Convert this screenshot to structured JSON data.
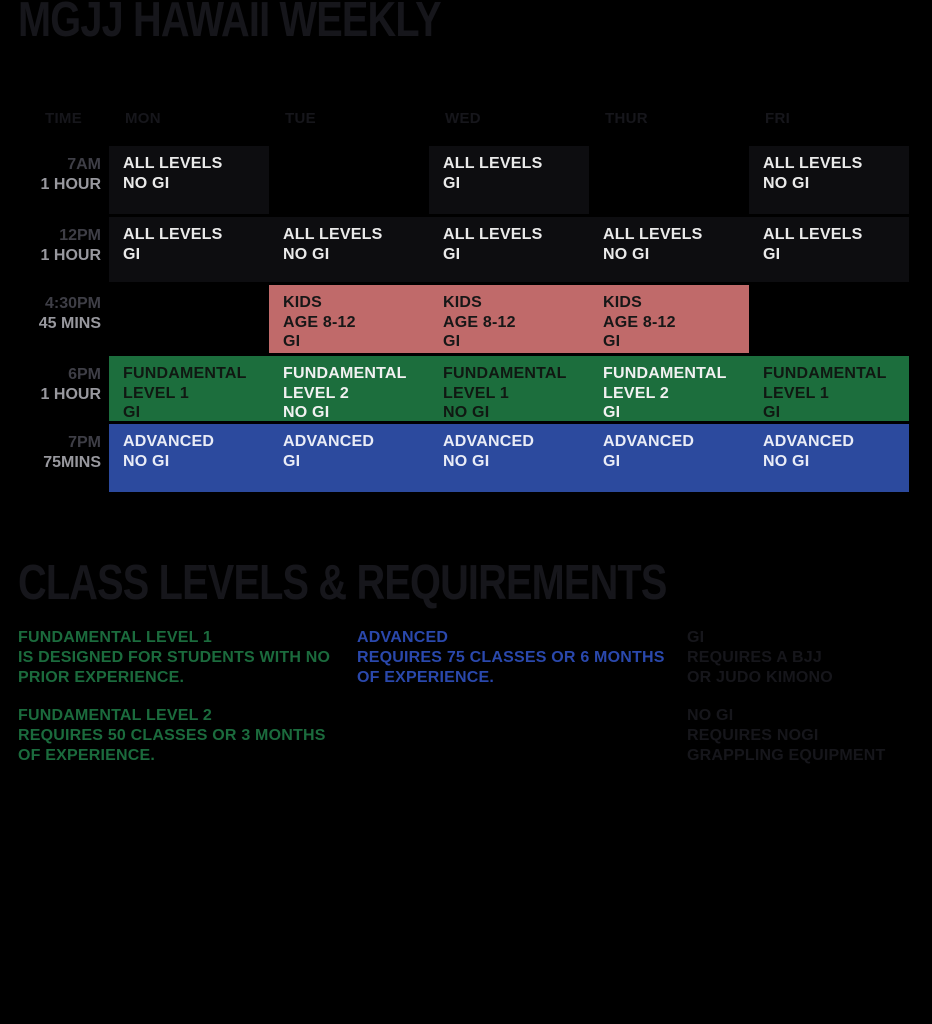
{
  "title": "MGJJ HAWAII WEEKLY",
  "colors": {
    "background": "#000000",
    "cell_dark": "#0D0D10",
    "kids_pink": "#C06A6A",
    "fundamental_green": "#1C6E3D",
    "advanced_blue": "#2C4A9E",
    "muted_heading": "#16161B",
    "time_gray": "#3E3E46",
    "duration_gray": "#98989E",
    "green_text": "#1B6B3D",
    "blue_text": "#2A48AC"
  },
  "schedule": {
    "time_header": "TIME",
    "days": [
      "MON",
      "TUE",
      "WED",
      "THUR",
      "FRI"
    ],
    "rows": [
      {
        "time": "7AM",
        "duration": "1 HOUR",
        "cells": [
          {
            "lines": [
              "ALL LEVELS",
              "NO GI"
            ]
          },
          {
            "lines": []
          },
          {
            "lines": [
              "ALL LEVELS",
              "GI"
            ]
          },
          {
            "lines": []
          },
          {
            "lines": [
              "ALL LEVELS",
              "NO GI"
            ]
          }
        ]
      },
      {
        "time": "12PM",
        "duration": "1 HOUR",
        "cells": [
          {
            "lines": [
              "ALL LEVELS",
              "GI"
            ]
          },
          {
            "lines": [
              "ALL LEVELS",
              "NO GI"
            ]
          },
          {
            "lines": [
              "ALL LEVELS",
              "GI"
            ]
          },
          {
            "lines": [
              "ALL LEVELS",
              "NO GI"
            ]
          },
          {
            "lines": [
              "ALL LEVELS",
              "GI"
            ]
          }
        ]
      },
      {
        "time": "4:30PM",
        "duration": "45 MINS",
        "cells": [
          {
            "lines": []
          },
          {
            "lines": [
              "KIDS",
              "AGE 8-12",
              "GI"
            ]
          },
          {
            "lines": [
              "KIDS",
              "AGE 8-12",
              "GI"
            ]
          },
          {
            "lines": [
              "KIDS",
              "AGE 8-12",
              "GI"
            ]
          },
          {
            "lines": []
          }
        ]
      },
      {
        "time": "6PM",
        "duration": "1 HOUR",
        "cells": [
          {
            "lines": [
              "FUNDAMENTAL",
              "LEVEL 1",
              "GI"
            ]
          },
          {
            "lines": [
              "FUNDAMENTAL",
              "LEVEL 2",
              "NO GI"
            ]
          },
          {
            "lines": [
              "FUNDAMENTAL",
              "LEVEL 1",
              "NO GI"
            ]
          },
          {
            "lines": [
              "FUNDAMENTAL",
              "LEVEL 2",
              "GI"
            ]
          },
          {
            "lines": [
              "FUNDAMENTAL",
              "LEVEL 1",
              "GI"
            ]
          }
        ]
      },
      {
        "time": "7PM",
        "duration": "75MINS",
        "cells": [
          {
            "lines": [
              "ADVANCED",
              "NO GI"
            ]
          },
          {
            "lines": [
              "ADVANCED",
              "GI"
            ]
          },
          {
            "lines": [
              "ADVANCED",
              "NO GI"
            ]
          },
          {
            "lines": [
              "ADVANCED",
              "GI"
            ]
          },
          {
            "lines": [
              "ADVANCED",
              "NO GI"
            ]
          }
        ]
      }
    ]
  },
  "requirements": {
    "heading": "CLASS LEVELS & REQUIREMENTS",
    "columns": [
      {
        "blocks": [
          {
            "title": "FUNDAMENTAL LEVEL 1",
            "lines": [
              "IS DESIGNED FOR STUDENTS WITH NO",
              "PRIOR EXPERIENCE."
            ]
          },
          {
            "title": "FUNDAMENTAL LEVEL 2",
            "lines": [
              "REQUIRES 50 CLASSES OR 3 MONTHS",
              "OF EXPERIENCE."
            ]
          }
        ]
      },
      {
        "blocks": [
          {
            "title": "ADVANCED",
            "lines": [
              "REQUIRES 75 CLASSES OR 6 MONTHS",
              "OF EXPERIENCE."
            ]
          }
        ]
      },
      {
        "blocks": [
          {
            "title": "GI",
            "lines": [
              "REQUIRES A BJJ",
              "OR JUDO KIMONO"
            ]
          },
          {
            "title": "NO GI",
            "lines": [
              "REQUIRES NOGI",
              "GRAPPLING EQUIPMENT"
            ]
          }
        ]
      }
    ]
  }
}
